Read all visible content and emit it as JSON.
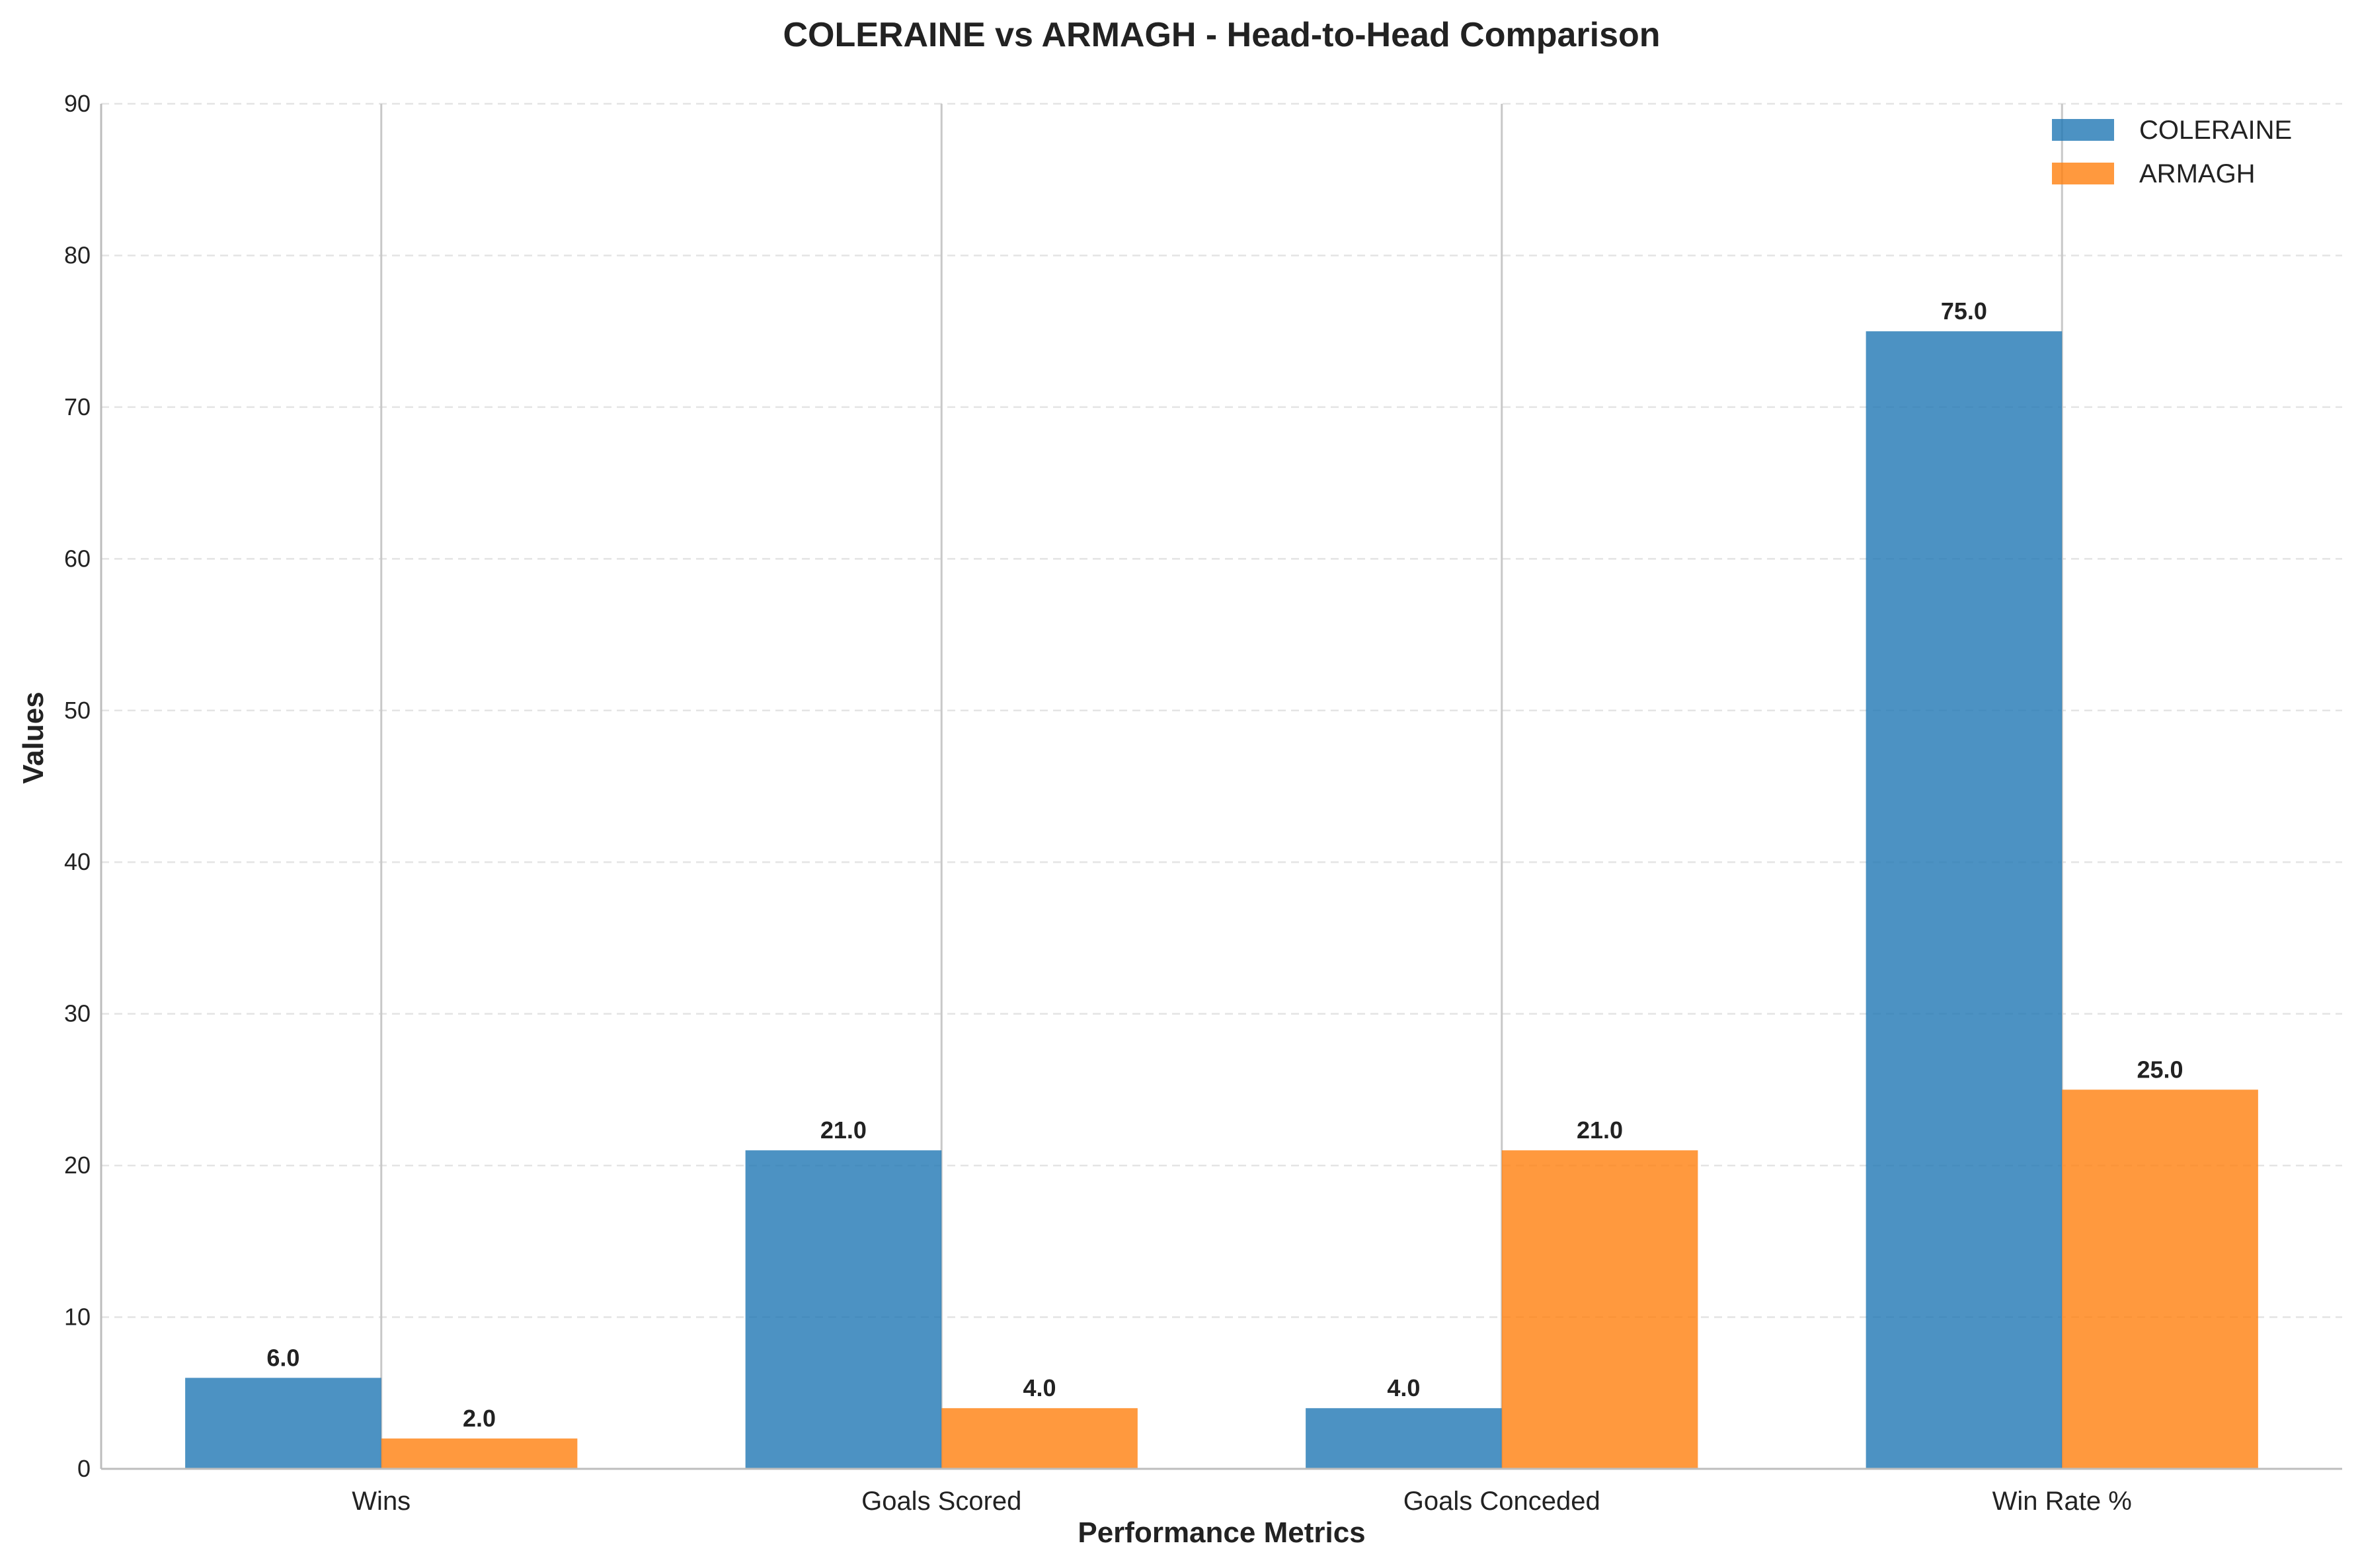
{
  "chart_data": {
    "type": "bar",
    "title": "COLERAINE vs ARMAGH - Head-to-Head Comparison",
    "xlabel": "Performance Metrics",
    "ylabel": "Values",
    "categories": [
      "Wins",
      "Goals Scored",
      "Goals Conceded",
      "Win Rate %"
    ],
    "series": [
      {
        "name": "COLERAINE",
        "values": [
          6.0,
          21.0,
          4.0,
          75.0
        ],
        "color": "#1f77b4"
      },
      {
        "name": "ARMAGH",
        "values": [
          2.0,
          4.0,
          21.0,
          25.0
        ],
        "color": "#ff7f0e"
      }
    ],
    "value_labels": [
      [
        "6.0",
        "21.0",
        "4.0",
        "75.0"
      ],
      [
        "2.0",
        "4.0",
        "21.0",
        "25.0"
      ]
    ],
    "ylim": [
      0,
      90
    ],
    "yticks": [
      "0",
      "10",
      "20",
      "30",
      "40",
      "50",
      "60",
      "70",
      "80",
      "90"
    ],
    "grid": "y-dashed",
    "legend_position": "top-right"
  }
}
